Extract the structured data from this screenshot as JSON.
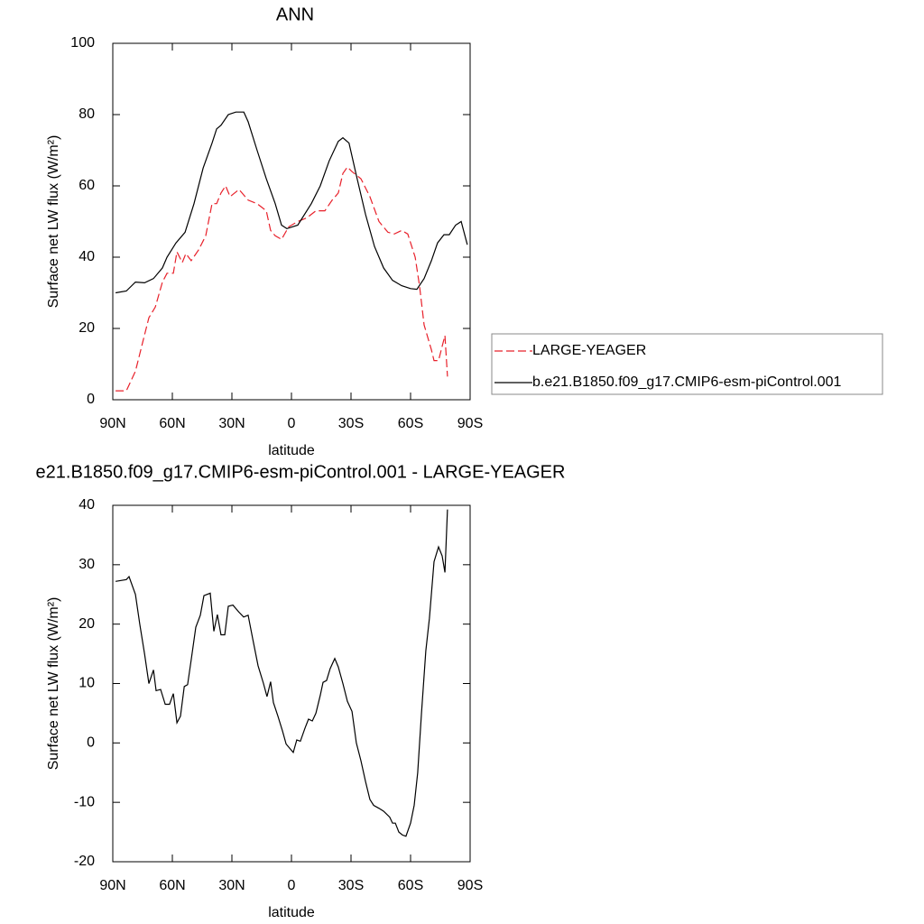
{
  "chart_data": [
    {
      "type": "line",
      "title": "ANN",
      "xlabel": "latitude",
      "ylabel": "Surface net LW flux (W/m²)",
      "xlim": [
        90,
        -90
      ],
      "xticks": [
        {
          "value": 90,
          "label": "90N"
        },
        {
          "value": 60,
          "label": "60N"
        },
        {
          "value": 30,
          "label": "30N"
        },
        0,
        {
          "value": -30,
          "label": "30S"
        },
        {
          "value": -60,
          "label": "60S"
        },
        {
          "value": -90,
          "label": "90S"
        }
      ],
      "ylim": [
        0,
        100
      ],
      "yticks": [
        0,
        20,
        40,
        60,
        80,
        100
      ],
      "legend": "right",
      "series": [
        {
          "name": "LARGE-YEAGER",
          "color": "#e8202a",
          "line_style": "dashed",
          "x": [
            88.6,
            83.2,
            78.6,
            75,
            71.8,
            68.6,
            65,
            62.7,
            59.5,
            57.7,
            55,
            53.2,
            50.5,
            46.8,
            43.2,
            40,
            37.7,
            35.5,
            33.2,
            30.9,
            26.4,
            21.8,
            17.3,
            12.7,
            10.5,
            8.2,
            5,
            1.4,
            -3.2,
            -7.7,
            -12.3,
            -16.8,
            -20.5,
            -23.6,
            -25.9,
            -28.2,
            -30.5,
            -35,
            -39.5,
            -44.1,
            -48.6,
            -51.8,
            -55.5,
            -58.6,
            -62.3,
            -64.5,
            -66.8,
            -70.5,
            -71.8,
            -74.1,
            -75.9,
            -77.3,
            -78.6
          ],
          "values": [
            2.5,
            2.5,
            8,
            16,
            23,
            26,
            33,
            35.5,
            35.5,
            41.5,
            38.5,
            41,
            39,
            42,
            46,
            55,
            55,
            58,
            60,
            57,
            59,
            56,
            55,
            53,
            47.5,
            46,
            45,
            48.5,
            50,
            51,
            53,
            53,
            56,
            58,
            63.5,
            65.3,
            64,
            62,
            57,
            50,
            47,
            46.5,
            47.5,
            46.5,
            40,
            32,
            21,
            14,
            11,
            11,
            15,
            18,
            6.5
          ]
        },
        {
          "name": "b.e21.B1850.f09_g17.CMIP6-esm-piControl.001",
          "color": "#000000",
          "line_style": "solid",
          "x": [
            88.6,
            83.2,
            78.6,
            74,
            69.5,
            65,
            62.7,
            58.2,
            53.6,
            49.1,
            44.5,
            40,
            37.7,
            35.5,
            31.8,
            28,
            24,
            21.8,
            17.3,
            12.7,
            8.2,
            5,
            2.3,
            -3.2,
            -10,
            -14.5,
            -19,
            -23.6,
            -25.9,
            -29,
            -32.7,
            -37.3,
            -41.8,
            -46.4,
            -50.9,
            -55.5,
            -60,
            -63.2,
            -66.8,
            -70.5,
            -73.6,
            -76.8,
            -79.5,
            -82.7,
            -85.5,
            -88.6
          ],
          "values": [
            30,
            30.5,
            33,
            32.8,
            34,
            37,
            40,
            44,
            47,
            55,
            65,
            72,
            76,
            77,
            80,
            80.7,
            80.7,
            78,
            70,
            62,
            55,
            49,
            48,
            49,
            55,
            60,
            67,
            72.5,
            73.5,
            72,
            63,
            52,
            43,
            37,
            33.5,
            32,
            31.2,
            31,
            34,
            39,
            44,
            46.3,
            46.3,
            49,
            50,
            43.5
          ]
        }
      ]
    },
    {
      "type": "line",
      "title": "e21.B1850.f09_g17.CMIP6-esm-piControl.001 - LARGE-YEAGER",
      "xlabel": "latitude",
      "ylabel": "Surface net LW flux (W/m²)",
      "xlim": [
        90,
        -90
      ],
      "xticks": [
        {
          "value": 90,
          "label": "90N"
        },
        {
          "value": 60,
          "label": "60N"
        },
        {
          "value": 30,
          "label": "30N"
        },
        0,
        {
          "value": -30,
          "label": "30S"
        },
        {
          "value": -60,
          "label": "60S"
        },
        {
          "value": -90,
          "label": "90S"
        }
      ],
      "ylim": [
        -20,
        40
      ],
      "yticks": [
        -20,
        -10,
        0,
        10,
        20,
        30,
        40
      ],
      "series": [
        {
          "color": "#000000",
          "line_style": "solid",
          "x": [
            88.6,
            83.2,
            81.8,
            78.6,
            76.4,
            74,
            71.8,
            69.5,
            68.2,
            65.9,
            63.6,
            61.4,
            59.5,
            57.7,
            55.9,
            54,
            52.3,
            50.5,
            48.2,
            45.9,
            44.1,
            40.9,
            39.1,
            37.3,
            35.5,
            33.6,
            31.8,
            29.5,
            26.4,
            24.1,
            21.8,
            19.5,
            16.8,
            14.1,
            12.3,
            10.5,
            9.1,
            6.8,
            4.5,
            2.7,
            -0.9,
            -2.7,
            -4.5,
            -6.8,
            -8.6,
            -10.5,
            -12.3,
            -14.5,
            -15.9,
            -17.7,
            -19.5,
            -21.8,
            -23.6,
            -25.9,
            -28.2,
            -30.5,
            -32.7,
            -35,
            -37.3,
            -39.5,
            -41.4,
            -44.1,
            -46.4,
            -49.5,
            -50.9,
            -52.3,
            -54.1,
            -55.9,
            -57.7,
            -60,
            -61.8,
            -63.6,
            -65.5,
            -67.7,
            -69.5,
            -71.8,
            -74.1,
            -75.9,
            -77.3,
            -78.6
          ],
          "values": [
            27.2,
            27.5,
            28,
            25,
            20,
            15,
            10,
            12.3,
            8.8,
            9,
            6.5,
            6.5,
            8.3,
            3.4,
            4.5,
            9.5,
            9.8,
            14,
            19.5,
            21.5,
            24.8,
            25.2,
            18.8,
            21.6,
            18.2,
            18.2,
            23,
            23.2,
            22,
            21.2,
            21.5,
            17.5,
            13,
            10,
            7.8,
            10.3,
            6.8,
            4.5,
            2,
            -0.2,
            -1.6,
            0.5,
            0.3,
            2.5,
            4,
            3.7,
            5,
            8,
            10.2,
            10.5,
            12.5,
            14.2,
            12.8,
            10,
            7,
            5.3,
            0,
            -3,
            -6.5,
            -9.5,
            -10.5,
            -11,
            -11.5,
            -12.5,
            -13.5,
            -13.5,
            -15,
            -15.5,
            -15.7,
            -13.5,
            -10.5,
            -5,
            5,
            15.5,
            21,
            30.5,
            33,
            31.5,
            28.7,
            39.3
          ]
        }
      ]
    }
  ]
}
